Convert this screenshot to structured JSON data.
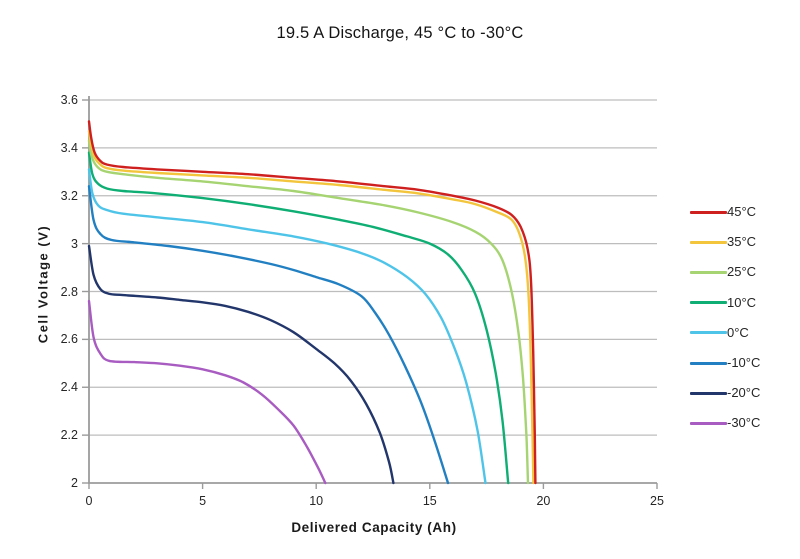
{
  "chart_data": {
    "type": "line",
    "title": "19.5 A Discharge, 45 °C to -30°C",
    "xlabel": "Delivered Capacity  (Ah)",
    "ylabel": "Cell Voltage (V)",
    "xlim": [
      0,
      25
    ],
    "ylim": [
      2,
      3.6
    ],
    "x_tick_values": [
      0,
      5,
      10,
      15,
      20,
      25
    ],
    "x_tick_labels": [
      "0",
      "5",
      "10",
      "15",
      "20",
      "25"
    ],
    "y_tick_values": [
      3.6,
      3.4,
      3.2,
      3.0,
      2.8,
      2.6,
      2.4,
      2.2,
      2.0
    ],
    "y_tick_labels": [
      "3.6",
      "3.4",
      "3.2",
      "3",
      "2.8",
      "2.6",
      "2.4",
      "2.2",
      "2"
    ],
    "grid": "horizontal",
    "legend_position": "right",
    "axis_color": "#9b9b9b",
    "grid_color": "#bdbdbd",
    "text_color": "#262626",
    "series": [
      {
        "name": "45°C",
        "color": "#cf2020",
        "points": [
          [
            0,
            3.51
          ],
          [
            0.1,
            3.44
          ],
          [
            0.25,
            3.38
          ],
          [
            0.5,
            3.345
          ],
          [
            0.8,
            3.33
          ],
          [
            1.5,
            3.32
          ],
          [
            3,
            3.31
          ],
          [
            5,
            3.3
          ],
          [
            7,
            3.29
          ],
          [
            9,
            3.275
          ],
          [
            11,
            3.26
          ],
          [
            13,
            3.24
          ],
          [
            14.5,
            3.225
          ],
          [
            16,
            3.2
          ],
          [
            17,
            3.18
          ],
          [
            18,
            3.15
          ],
          [
            18.6,
            3.12
          ],
          [
            19,
            3.07
          ],
          [
            19.3,
            2.98
          ],
          [
            19.45,
            2.85
          ],
          [
            19.55,
            2.55
          ],
          [
            19.62,
            2.2
          ],
          [
            19.65,
            2
          ]
        ]
      },
      {
        "name": "35°C",
        "color": "#f2c53d",
        "points": [
          [
            0,
            3.47
          ],
          [
            0.1,
            3.41
          ],
          [
            0.25,
            3.36
          ],
          [
            0.5,
            3.33
          ],
          [
            0.8,
            3.315
          ],
          [
            1.5,
            3.305
          ],
          [
            3,
            3.295
          ],
          [
            5,
            3.285
          ],
          [
            7,
            3.275
          ],
          [
            9,
            3.26
          ],
          [
            11,
            3.245
          ],
          [
            13,
            3.225
          ],
          [
            14.5,
            3.21
          ],
          [
            16,
            3.185
          ],
          [
            17,
            3.165
          ],
          [
            18,
            3.13
          ],
          [
            18.6,
            3.1
          ],
          [
            18.95,
            3.04
          ],
          [
            19.2,
            2.94
          ],
          [
            19.35,
            2.78
          ],
          [
            19.45,
            2.5
          ],
          [
            19.52,
            2.2
          ],
          [
            19.56,
            2
          ]
        ]
      },
      {
        "name": "25°C",
        "color": "#a6d472",
        "points": [
          [
            0,
            3.43
          ],
          [
            0.1,
            3.37
          ],
          [
            0.25,
            3.335
          ],
          [
            0.5,
            3.31
          ],
          [
            0.8,
            3.3
          ],
          [
            1.5,
            3.29
          ],
          [
            3,
            3.275
          ],
          [
            5,
            3.26
          ],
          [
            7,
            3.24
          ],
          [
            9,
            3.22
          ],
          [
            11,
            3.19
          ],
          [
            13,
            3.16
          ],
          [
            14.5,
            3.13
          ],
          [
            16,
            3.09
          ],
          [
            17,
            3.05
          ],
          [
            17.7,
            3.0
          ],
          [
            18.2,
            2.93
          ],
          [
            18.6,
            2.8
          ],
          [
            18.9,
            2.63
          ],
          [
            19.1,
            2.44
          ],
          [
            19.25,
            2.2
          ],
          [
            19.32,
            2
          ]
        ]
      },
      {
        "name": "10°C",
        "color": "#0fae74",
        "points": [
          [
            0,
            3.38
          ],
          [
            0.15,
            3.29
          ],
          [
            0.4,
            3.25
          ],
          [
            0.8,
            3.23
          ],
          [
            1.5,
            3.22
          ],
          [
            3,
            3.21
          ],
          [
            5,
            3.19
          ],
          [
            7,
            3.165
          ],
          [
            9,
            3.135
          ],
          [
            11,
            3.1
          ],
          [
            12.5,
            3.07
          ],
          [
            14,
            3.03
          ],
          [
            15,
            3.0
          ],
          [
            15.8,
            2.955
          ],
          [
            16.4,
            2.89
          ],
          [
            17,
            2.79
          ],
          [
            17.5,
            2.64
          ],
          [
            17.9,
            2.46
          ],
          [
            18.2,
            2.26
          ],
          [
            18.45,
            2
          ]
        ]
      },
      {
        "name": "0°C",
        "color": "#4fc4e9",
        "points": [
          [
            0,
            3.31
          ],
          [
            0.15,
            3.21
          ],
          [
            0.4,
            3.16
          ],
          [
            0.8,
            3.14
          ],
          [
            1.5,
            3.125
          ],
          [
            3,
            3.11
          ],
          [
            5,
            3.09
          ],
          [
            7,
            3.06
          ],
          [
            9,
            3.03
          ],
          [
            10.5,
            3.0
          ],
          [
            12,
            2.96
          ],
          [
            13,
            2.92
          ],
          [
            14,
            2.86
          ],
          [
            14.8,
            2.79
          ],
          [
            15.5,
            2.69
          ],
          [
            16.1,
            2.56
          ],
          [
            16.6,
            2.42
          ],
          [
            17.1,
            2.22
          ],
          [
            17.45,
            2
          ]
        ]
      },
      {
        "name": "-10°C",
        "color": "#2280c2",
        "points": [
          [
            0,
            3.24
          ],
          [
            0.2,
            3.1
          ],
          [
            0.5,
            3.04
          ],
          [
            1,
            3.015
          ],
          [
            2,
            3.005
          ],
          [
            3.5,
            2.99
          ],
          [
            5,
            2.97
          ],
          [
            6.5,
            2.945
          ],
          [
            8,
            2.915
          ],
          [
            9,
            2.89
          ],
          [
            10,
            2.86
          ],
          [
            11,
            2.83
          ],
          [
            12,
            2.78
          ],
          [
            12.6,
            2.71
          ],
          [
            13.2,
            2.62
          ],
          [
            13.9,
            2.49
          ],
          [
            14.6,
            2.34
          ],
          [
            15.2,
            2.18
          ],
          [
            15.8,
            2
          ]
        ]
      },
      {
        "name": "-20°C",
        "color": "#22366b",
        "points": [
          [
            0,
            2.99
          ],
          [
            0.2,
            2.87
          ],
          [
            0.5,
            2.81
          ],
          [
            0.9,
            2.79
          ],
          [
            1.5,
            2.785
          ],
          [
            3,
            2.775
          ],
          [
            4,
            2.765
          ],
          [
            5,
            2.755
          ],
          [
            6,
            2.74
          ],
          [
            7,
            2.715
          ],
          [
            8,
            2.68
          ],
          [
            9,
            2.63
          ],
          [
            10,
            2.56
          ],
          [
            10.8,
            2.5
          ],
          [
            11.5,
            2.43
          ],
          [
            12.2,
            2.33
          ],
          [
            12.8,
            2.21
          ],
          [
            13.2,
            2.09
          ],
          [
            13.4,
            2
          ]
        ]
      },
      {
        "name": "-30°C",
        "color": "#a85cc1",
        "points": [
          [
            0,
            2.76
          ],
          [
            0.2,
            2.61
          ],
          [
            0.5,
            2.54
          ],
          [
            0.9,
            2.51
          ],
          [
            2,
            2.505
          ],
          [
            3,
            2.5
          ],
          [
            4,
            2.49
          ],
          [
            5,
            2.475
          ],
          [
            6,
            2.45
          ],
          [
            6.8,
            2.42
          ],
          [
            7.6,
            2.37
          ],
          [
            8.3,
            2.31
          ],
          [
            9,
            2.24
          ],
          [
            9.6,
            2.15
          ],
          [
            10.1,
            2.06
          ],
          [
            10.4,
            2
          ]
        ]
      }
    ]
  }
}
